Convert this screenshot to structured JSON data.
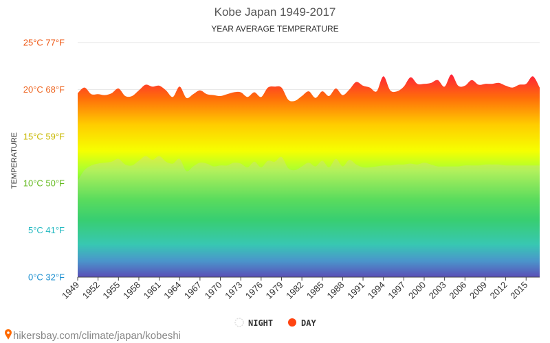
{
  "chart_data": {
    "type": "area",
    "title": "Kobe Japan 1949-2017",
    "subtitle": "YEAR AVERAGE TEMPERATURE",
    "ylabel": "TEMPERATURE",
    "ylim": [
      0,
      25
    ],
    "xlim": [
      1949,
      2017
    ],
    "yticks": [
      {
        "value": 0,
        "label": "0°C 32°F",
        "color": "#1e90d0"
      },
      {
        "value": 5,
        "label": "5°C 41°F",
        "color": "#20b8c0"
      },
      {
        "value": 10,
        "label": "10°C 50°F",
        "color": "#66bb22"
      },
      {
        "value": 15,
        "label": "15°C 59°F",
        "color": "#c8b800"
      },
      {
        "value": 20,
        "label": "20°C 68°F",
        "color": "#ee6622"
      },
      {
        "value": 25,
        "label": "25°C 77°F",
        "color": "#ee5511"
      }
    ],
    "xticks": [
      1949,
      1952,
      1955,
      1958,
      1961,
      1964,
      1967,
      1970,
      1973,
      1976,
      1979,
      1982,
      1985,
      1988,
      1991,
      1994,
      1997,
      2000,
      2003,
      2006,
      2009,
      2012,
      2015
    ],
    "series": [
      {
        "name": "NIGHT",
        "color": "#dddddd",
        "x": [
          1949,
          1950,
          1951,
          1952,
          1953,
          1954,
          1955,
          1956,
          1957,
          1958,
          1959,
          1960,
          1961,
          1962,
          1963,
          1964,
          1965,
          1966,
          1967,
          1968,
          1969,
          1970,
          1971,
          1972,
          1973,
          1974,
          1975,
          1976,
          1977,
          1978,
          1979,
          1980,
          1981,
          1982,
          1983,
          1984,
          1985,
          1986,
          1987,
          1988,
          1989,
          1990,
          1991,
          1992,
          1993,
          1994,
          1995,
          1996,
          1997,
          1998,
          1999,
          2000,
          2001,
          2002,
          2003,
          2004,
          2005,
          2006,
          2007,
          2008,
          2009,
          2010,
          2011,
          2012,
          2013,
          2014,
          2015,
          2016,
          2017
        ],
        "values": [
          10.3,
          11.4,
          11.9,
          12.1,
          12.2,
          12.3,
          12.6,
          12.0,
          11.9,
          12.4,
          12.9,
          12.5,
          12.9,
          12.3,
          12.1,
          12.6,
          11.3,
          11.8,
          12.2,
          12.1,
          11.8,
          11.9,
          11.9,
          12.2,
          12.1,
          11.7,
          12.3,
          11.7,
          12.4,
          12.3,
          12.8,
          11.6,
          11.4,
          11.8,
          12.2,
          11.8,
          12.4,
          11.7,
          12.6,
          11.8,
          12.5,
          12.0,
          11.7,
          11.7,
          11.8,
          11.9,
          11.9,
          12.0,
          12.0,
          12.1,
          12.0,
          12.2,
          12.0,
          11.8,
          11.8,
          11.8,
          11.8,
          11.9,
          11.9,
          11.9,
          12.0,
          12.0,
          12.0,
          11.9,
          11.9,
          11.9,
          11.9,
          11.9,
          11.9
        ]
      },
      {
        "name": "DAY",
        "color": "#ff4411",
        "x": [
          1949,
          1950,
          1951,
          1952,
          1953,
          1954,
          1955,
          1956,
          1957,
          1958,
          1959,
          1960,
          1961,
          1962,
          1963,
          1964,
          1965,
          1966,
          1967,
          1968,
          1969,
          1970,
          1971,
          1972,
          1973,
          1974,
          1975,
          1976,
          1977,
          1978,
          1979,
          1980,
          1981,
          1982,
          1983,
          1984,
          1985,
          1986,
          1987,
          1988,
          1989,
          1990,
          1991,
          1992,
          1993,
          1994,
          1995,
          1996,
          1997,
          1998,
          1999,
          2000,
          2001,
          2002,
          2003,
          2004,
          2005,
          2006,
          2007,
          2008,
          2009,
          2010,
          2011,
          2012,
          2013,
          2014,
          2015,
          2016,
          2017
        ],
        "values": [
          19.6,
          20.2,
          19.5,
          19.5,
          19.4,
          19.6,
          20.1,
          19.3,
          19.3,
          19.9,
          20.5,
          20.3,
          20.4,
          19.9,
          19.2,
          20.3,
          19.1,
          19.5,
          19.9,
          19.5,
          19.4,
          19.3,
          19.5,
          19.7,
          19.7,
          19.2,
          19.7,
          19.2,
          20.2,
          20.3,
          20.2,
          18.9,
          18.8,
          19.3,
          19.8,
          19.1,
          19.8,
          19.3,
          20.1,
          19.4,
          20.0,
          20.8,
          20.4,
          20.2,
          19.8,
          21.4,
          19.9,
          19.8,
          20.3,
          21.3,
          20.6,
          20.6,
          20.7,
          21.0,
          20.3,
          21.6,
          20.4,
          20.4,
          21.0,
          20.5,
          20.6,
          20.6,
          20.7,
          20.4,
          20.2,
          20.5,
          20.6,
          21.4,
          20.2
        ]
      }
    ],
    "grid": true,
    "legend_position": "bottom-center"
  },
  "source": "hikersbay.com/climate/japan/kobeshi",
  "colors": {
    "gradient": [
      "#ff1e3c",
      "#ff6d0a",
      "#ffcc00",
      "#f6ff00",
      "#a6ff33",
      "#2fe334",
      "#00d050",
      "#00c7aa",
      "#1a82cc",
      "#3020b0"
    ]
  }
}
